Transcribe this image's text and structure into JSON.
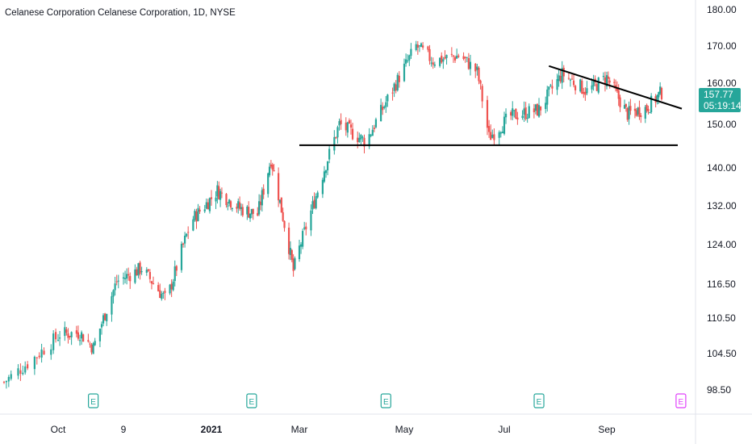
{
  "header": {
    "title": "Celanese Corporation Celanese Corporation, 1D, NYSE"
  },
  "last_price": {
    "value": "157.77",
    "countdown": "05:19:14",
    "color": "#26a69a"
  },
  "colors": {
    "up": "#26a69a",
    "down": "#ef5350",
    "earnings": "#26a69a",
    "earnings_upcoming": "#e040fb",
    "trendline": "#000000"
  },
  "earnings_markers": [
    {
      "date": "2020-10-22",
      "label": "E",
      "upcoming": false
    },
    {
      "date": "2021-01-28",
      "label": "E",
      "upcoming": false
    },
    {
      "date": "2021-04-22",
      "label": "E",
      "upcoming": false
    },
    {
      "date": "2021-07-22",
      "label": "E",
      "upcoming": false
    },
    {
      "date": "2021-10-21",
      "label": "E",
      "upcoming": true
    }
  ],
  "chart_data": {
    "type": "candlestick",
    "title": "Celanese Corporation Celanese Corporation, 1D, NYSE",
    "y_ticks": [
      "180.00",
      "170.00",
      "160.00",
      "150.00",
      "140.00",
      "132.00",
      "124.00",
      "116.50",
      "110.50",
      "104.50",
      "98.50"
    ],
    "x_ticks": [
      "Oct",
      "9",
      "2021",
      "Mar",
      "May",
      "Jul",
      "Sep"
    ],
    "x_range": [
      "2020-09-08",
      "2021-10-08"
    ],
    "grid": false,
    "support_line": {
      "price": 145.2,
      "from": "2021-03-01",
      "to": "2021-10-08"
    },
    "resistance_line": {
      "from": [
        "2021-07-28",
        164.6
      ],
      "to": [
        "2021-10-08",
        153.8
      ]
    },
    "series": [
      {
        "x": [
          "2020-09-08",
          "2020-09-20",
          "2020-10-02",
          "2020-10-14",
          "2020-10-22",
          "2020-11-05",
          "2020-11-20",
          "2020-12-05",
          "2020-12-20",
          "2021-01-05",
          "2021-01-20",
          "2021-02-01",
          "2021-02-10",
          "2021-02-25",
          "2021-03-10",
          "2021-03-25",
          "2021-04-10",
          "2021-04-28",
          "2021-05-10",
          "2021-05-20",
          "2021-06-05",
          "2021-06-15",
          "2021-06-22",
          "2021-07-05",
          "2021-07-22",
          "2021-08-05",
          "2021-08-20",
          "2021-09-01",
          "2021-09-15",
          "2021-09-28",
          "2021-10-08"
        ],
        "close": [
          99.8,
          103.5,
          107.8,
          108.0,
          105.5,
          117.0,
          119.5,
          113.5,
          129.0,
          135.2,
          131.5,
          130.2,
          142.0,
          119.0,
          133.0,
          150.0,
          146.0,
          160.0,
          170.0,
          166.0,
          167.5,
          163.0,
          147.0,
          152.0,
          153.5,
          162.5,
          158.0,
          161.5,
          152.5,
          154.0,
          157.77
        ]
      }
    ]
  }
}
